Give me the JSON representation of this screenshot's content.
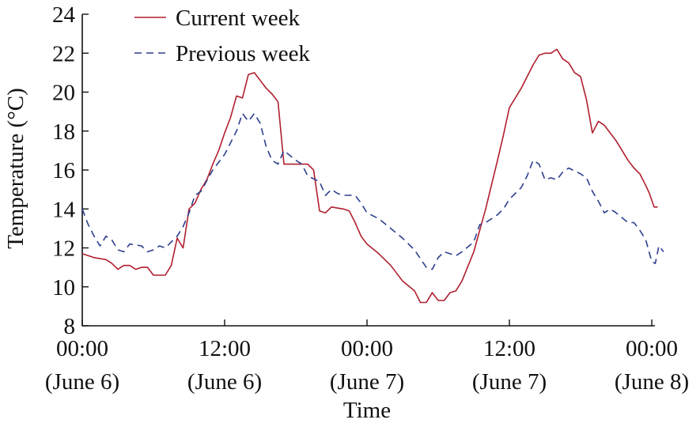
{
  "chart_data": {
    "type": "line",
    "xlabel": "Time",
    "ylabel": "Temperature (°C)",
    "x_unit": "hours",
    "xlim": [
      0,
      48
    ],
    "ylim": [
      8,
      24
    ],
    "y_ticks": [
      8,
      10,
      12,
      14,
      16,
      18,
      20,
      22,
      24
    ],
    "x_ticks": [
      {
        "x": 0,
        "line1": "00:00",
        "line2": "(June 6)"
      },
      {
        "x": 12,
        "line1": "12:00",
        "line2": "(June 6)"
      },
      {
        "x": 24,
        "line1": "00:00",
        "line2": "(June 7)"
      },
      {
        "x": 36,
        "line1": "12:00",
        "line2": "(June 7)"
      },
      {
        "x": 48,
        "line1": "00:00",
        "line2": "(June 8)"
      }
    ],
    "grid": false,
    "legend": "top-left",
    "series": [
      {
        "name": "Current week",
        "color": "#b01f2e",
        "style": "solid",
        "points": [
          [
            0,
            11.7
          ],
          [
            1,
            11.5
          ],
          [
            2,
            11.4
          ],
          [
            2.5,
            11.2
          ],
          [
            3,
            10.9
          ],
          [
            3.5,
            11.1
          ],
          [
            4,
            11.1
          ],
          [
            4.5,
            10.9
          ],
          [
            5,
            11.0
          ],
          [
            5.5,
            11.0
          ],
          [
            6,
            10.6
          ],
          [
            7,
            10.6
          ],
          [
            7.5,
            11.1
          ],
          [
            8,
            12.5
          ],
          [
            8.5,
            12.0
          ],
          [
            9,
            14.0
          ],
          [
            9.5,
            14.3
          ],
          [
            10,
            15.0
          ],
          [
            10.5,
            15.5
          ],
          [
            11,
            16.3
          ],
          [
            11.5,
            17.0
          ],
          [
            12,
            17.9
          ],
          [
            12.5,
            18.7
          ],
          [
            13,
            19.8
          ],
          [
            13.5,
            19.7
          ],
          [
            14,
            20.9
          ],
          [
            14.5,
            21.0
          ],
          [
            15,
            20.6
          ],
          [
            15.5,
            20.2
          ],
          [
            16,
            19.9
          ],
          [
            16.5,
            19.5
          ],
          [
            17,
            16.3
          ],
          [
            18,
            16.3
          ],
          [
            19,
            16.3
          ],
          [
            19.5,
            16.0
          ],
          [
            20,
            13.9
          ],
          [
            20.5,
            13.8
          ],
          [
            21,
            14.1
          ],
          [
            22,
            14.0
          ],
          [
            22.5,
            13.9
          ],
          [
            23,
            13.3
          ],
          [
            23.5,
            12.6
          ],
          [
            24,
            12.2
          ],
          [
            25,
            11.7
          ],
          [
            26,
            11.1
          ],
          [
            27,
            10.3
          ],
          [
            28,
            9.8
          ],
          [
            28.5,
            9.2
          ],
          [
            29,
            9.2
          ],
          [
            29.5,
            9.7
          ],
          [
            30,
            9.3
          ],
          [
            30.5,
            9.3
          ],
          [
            31,
            9.7
          ],
          [
            31.5,
            9.8
          ],
          [
            32,
            10.3
          ],
          [
            33,
            11.8
          ],
          [
            34,
            14.0
          ],
          [
            35,
            16.5
          ],
          [
            35.5,
            17.8
          ],
          [
            36,
            19.2
          ],
          [
            37,
            20.2
          ],
          [
            38,
            21.4
          ],
          [
            38.5,
            21.9
          ],
          [
            39,
            22.0
          ],
          [
            39.5,
            22.0
          ],
          [
            40,
            22.2
          ],
          [
            40.5,
            21.7
          ],
          [
            41,
            21.5
          ],
          [
            41.5,
            21.0
          ],
          [
            42,
            20.8
          ],
          [
            42.5,
            19.6
          ],
          [
            43,
            17.9
          ],
          [
            43.5,
            18.5
          ],
          [
            44,
            18.3
          ],
          [
            45,
            17.5
          ],
          [
            46,
            16.5
          ],
          [
            46.5,
            16.1
          ],
          [
            47,
            15.8
          ],
          [
            47.5,
            15.2
          ],
          [
            47.8,
            14.8
          ],
          [
            48.2,
            14.1
          ],
          [
            48.5,
            14.1
          ]
        ]
      },
      {
        "name": "Previous week",
        "color": "#2e3f8f",
        "style": "dashed",
        "points": [
          [
            0,
            14.0
          ],
          [
            0.5,
            13.2
          ],
          [
            1,
            12.6
          ],
          [
            1.5,
            12.1
          ],
          [
            2,
            12.6
          ],
          [
            2.5,
            12.4
          ],
          [
            3,
            11.9
          ],
          [
            3.5,
            11.8
          ],
          [
            4,
            12.2
          ],
          [
            5,
            12.1
          ],
          [
            5.5,
            11.8
          ],
          [
            6,
            11.9
          ],
          [
            6.5,
            12.1
          ],
          [
            7,
            12.0
          ],
          [
            7.5,
            12.3
          ],
          [
            8,
            12.6
          ],
          [
            8.5,
            13.1
          ],
          [
            9,
            13.8
          ],
          [
            9.5,
            14.7
          ],
          [
            10,
            14.9
          ],
          [
            11,
            16.0
          ],
          [
            12,
            16.8
          ],
          [
            13,
            18.0
          ],
          [
            13.5,
            18.9
          ],
          [
            14,
            18.5
          ],
          [
            14.5,
            18.9
          ],
          [
            15,
            18.4
          ],
          [
            15.5,
            17.2
          ],
          [
            16,
            16.5
          ],
          [
            16.5,
            16.3
          ],
          [
            17,
            17.0
          ],
          [
            18,
            16.5
          ],
          [
            18.5,
            16.3
          ],
          [
            19,
            15.7
          ],
          [
            20,
            15.4
          ],
          [
            20.5,
            14.7
          ],
          [
            21,
            15.0
          ],
          [
            21.5,
            14.8
          ],
          [
            22,
            14.7
          ],
          [
            23,
            14.7
          ],
          [
            23.5,
            14.3
          ],
          [
            24,
            13.8
          ],
          [
            25,
            13.5
          ],
          [
            26,
            13.0
          ],
          [
            27,
            12.5
          ],
          [
            28,
            11.9
          ],
          [
            29,
            11.0
          ],
          [
            29.5,
            10.9
          ],
          [
            30,
            11.5
          ],
          [
            30.5,
            11.8
          ],
          [
            31,
            11.7
          ],
          [
            31.5,
            11.6
          ],
          [
            32,
            11.8
          ],
          [
            33,
            12.3
          ],
          [
            33.5,
            13.2
          ],
          [
            34,
            13.3
          ],
          [
            35,
            13.7
          ],
          [
            35.5,
            14.0
          ],
          [
            36,
            14.5
          ],
          [
            37,
            15.1
          ],
          [
            37.5,
            15.7
          ],
          [
            38,
            16.5
          ],
          [
            38.5,
            16.3
          ],
          [
            39,
            15.5
          ],
          [
            39.5,
            15.6
          ],
          [
            40,
            15.5
          ],
          [
            40.5,
            15.9
          ],
          [
            41,
            16.1
          ],
          [
            42,
            15.8
          ],
          [
            42.5,
            15.6
          ],
          [
            43,
            14.9
          ],
          [
            43.5,
            14.4
          ],
          [
            44,
            13.8
          ],
          [
            44.5,
            14.0
          ],
          [
            45,
            13.8
          ],
          [
            46,
            13.3
          ],
          [
            46.5,
            13.3
          ],
          [
            47,
            12.9
          ],
          [
            47.5,
            12.4
          ],
          [
            48,
            11.3
          ],
          [
            48.3,
            11.2
          ],
          [
            48.6,
            12.1
          ],
          [
            49,
            11.8
          ]
        ]
      }
    ]
  }
}
